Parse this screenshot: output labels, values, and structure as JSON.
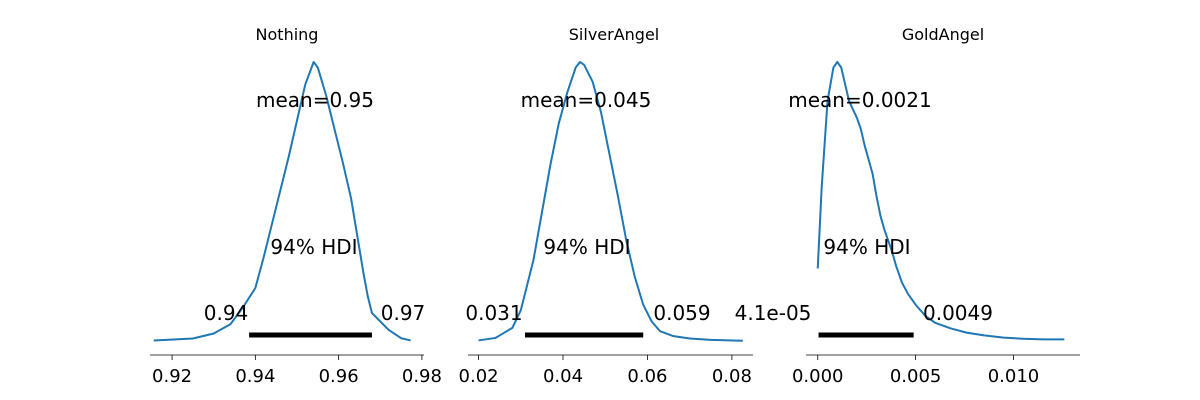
{
  "chart_data": [
    {
      "type": "line",
      "title": "Nothing",
      "mean_label": "mean=0.95",
      "hdi_label": "94% HDI",
      "hdi_low": 0.9385,
      "hdi_high": 0.968,
      "hdi_low_label": "0.94",
      "hdi_high_label": "0.97",
      "xlim": [
        0.9147,
        0.9805
      ],
      "xticks": [
        0.92,
        0.94,
        0.96,
        0.98
      ],
      "xtick_labels": [
        "0.92",
        "0.94",
        "0.96",
        "0.98"
      ],
      "density": [
        [
          0.9156,
          0.002
        ],
        [
          0.925,
          0.009
        ],
        [
          0.93,
          0.027
        ],
        [
          0.934,
          0.06
        ],
        [
          0.937,
          0.12
        ],
        [
          0.94,
          0.19
        ],
        [
          0.942,
          0.3
        ],
        [
          0.944,
          0.42
        ],
        [
          0.946,
          0.54
        ],
        [
          0.948,
          0.66
        ],
        [
          0.95,
          0.79
        ],
        [
          0.952,
          0.92
        ],
        [
          0.954,
          1.0
        ],
        [
          0.955,
          0.98
        ],
        [
          0.957,
          0.88
        ],
        [
          0.959,
          0.76
        ],
        [
          0.961,
          0.64
        ],
        [
          0.963,
          0.51
        ],
        [
          0.964,
          0.42
        ],
        [
          0.965,
          0.33
        ],
        [
          0.966,
          0.24
        ],
        [
          0.967,
          0.16
        ],
        [
          0.968,
          0.1
        ],
        [
          0.97,
          0.07
        ],
        [
          0.972,
          0.04
        ],
        [
          0.975,
          0.01
        ],
        [
          0.9773,
          0.002
        ]
      ]
    },
    {
      "type": "line",
      "title": "SilverAngel",
      "mean_label": "mean=0.045",
      "hdi_label": "94% HDI",
      "hdi_low": 0.031,
      "hdi_high": 0.059,
      "hdi_low_label": "0.031",
      "hdi_high_label": "0.059",
      "xlim": [
        0.0175,
        0.085
      ],
      "xticks": [
        0.02,
        0.04,
        0.06,
        0.08
      ],
      "xtick_labels": [
        "0.02",
        "0.04",
        "0.06",
        "0.08"
      ],
      "density": [
        [
          0.02,
          0.002
        ],
        [
          0.024,
          0.011
        ],
        [
          0.028,
          0.047
        ],
        [
          0.03,
          0.11
        ],
        [
          0.031,
          0.17
        ],
        [
          0.033,
          0.29
        ],
        [
          0.035,
          0.46
        ],
        [
          0.037,
          0.63
        ],
        [
          0.039,
          0.78
        ],
        [
          0.041,
          0.89
        ],
        [
          0.043,
          0.98
        ],
        [
          0.044,
          1.0
        ],
        [
          0.045,
          0.99
        ],
        [
          0.047,
          0.93
        ],
        [
          0.049,
          0.82
        ],
        [
          0.051,
          0.67
        ],
        [
          0.053,
          0.52
        ],
        [
          0.055,
          0.36
        ],
        [
          0.057,
          0.23
        ],
        [
          0.059,
          0.13
        ],
        [
          0.061,
          0.07
        ],
        [
          0.063,
          0.035
        ],
        [
          0.066,
          0.018
        ],
        [
          0.07,
          0.009
        ],
        [
          0.075,
          0.004
        ],
        [
          0.0826,
          0.001
        ]
      ]
    },
    {
      "type": "line",
      "title": "GoldAngel",
      "mean_label": "mean=0.0021",
      "hdi_label": "94% HDI",
      "hdi_low": 4.1e-05,
      "hdi_high": 0.0049,
      "hdi_low_label": "4.1e-05",
      "hdi_high_label": "0.0049",
      "xlim": [
        -0.0006,
        0.0134
      ],
      "xticks": [
        0.0,
        0.005,
        0.01
      ],
      "xtick_labels": [
        "0.000",
        "0.005",
        "0.010"
      ],
      "density": [
        [
          0.0,
          0.26
        ],
        [
          0.0002,
          0.55
        ],
        [
          0.0005,
          0.86
        ],
        [
          0.0008,
          0.98
        ],
        [
          0.001,
          1.0
        ],
        [
          0.0012,
          0.98
        ],
        [
          0.0014,
          0.92
        ],
        [
          0.0016,
          0.86
        ],
        [
          0.0018,
          0.83
        ],
        [
          0.002,
          0.8
        ],
        [
          0.0022,
          0.76
        ],
        [
          0.0024,
          0.7
        ],
        [
          0.0026,
          0.65
        ],
        [
          0.0028,
          0.6
        ],
        [
          0.003,
          0.52
        ],
        [
          0.0032,
          0.45
        ],
        [
          0.0034,
          0.4
        ],
        [
          0.0036,
          0.36
        ],
        [
          0.0038,
          0.32
        ],
        [
          0.004,
          0.27
        ],
        [
          0.0043,
          0.21
        ],
        [
          0.0046,
          0.17
        ],
        [
          0.005,
          0.13
        ],
        [
          0.0055,
          0.09
        ],
        [
          0.006,
          0.065
        ],
        [
          0.0068,
          0.045
        ],
        [
          0.0076,
          0.03
        ],
        [
          0.0085,
          0.02
        ],
        [
          0.0095,
          0.012
        ],
        [
          0.0105,
          0.008
        ],
        [
          0.0115,
          0.006
        ],
        [
          0.0126,
          0.006
        ]
      ]
    }
  ]
}
